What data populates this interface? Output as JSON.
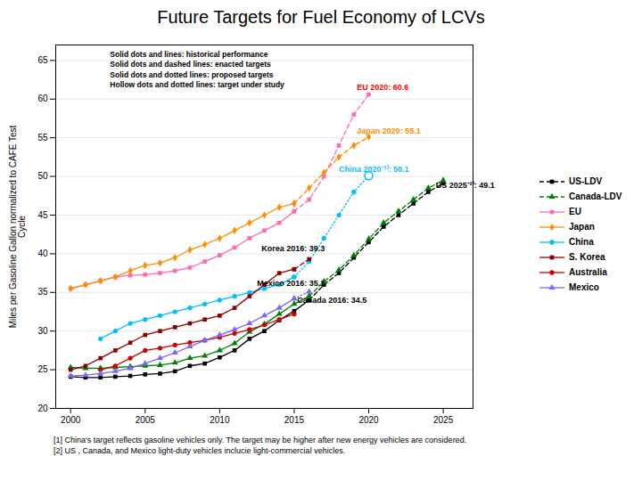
{
  "chart_data": {
    "type": "line",
    "title": "Future Targets for Fuel Economy of LCVs",
    "ylabel": "Miles per Gasoline Gallon normalized to CAFE Test\nCycle",
    "xlim": [
      1999,
      2027
    ],
    "ylim": [
      20,
      67
    ],
    "xticks": [
      2000,
      2005,
      2010,
      2015,
      2020,
      2025
    ],
    "yticks": [
      20,
      25,
      30,
      35,
      40,
      45,
      50,
      55,
      60,
      65
    ],
    "grid": "y",
    "legend": "right",
    "legend_text": [
      "Solid dots and lines: historical performance",
      "Solid dots and dashed lines: enacted targets",
      "Solid dots and dotted lines: proposed targets",
      "Hollow dots and dotted lines: target under study"
    ],
    "footnotes": [
      "[1] China's target reflects gasoline vehicles only. The target may be higher after new energy vehicles are considered.",
      "[2] US , Canada, and Mexico light-duty vehicles inclucie light-commercial vehicles."
    ],
    "annotations": [
      {
        "text": "EU 2020: 60.6",
        "x": 2019.2,
        "y": 61.2,
        "color": "#FF0000"
      },
      {
        "text": "Japan 2020: 55.1",
        "x": 2019.2,
        "y": 55.5,
        "color": "#FF8C00"
      },
      {
        "text": "China 2020⁻¹⁾: 50.1",
        "x": 2018.0,
        "y": 50.6,
        "color": "#00BFFF"
      },
      {
        "text": "US 2025⁻²⁾: 49.1",
        "x": 2024.5,
        "y": 48.5,
        "color": "#000000"
      },
      {
        "text": "Korea 2016: 39.3",
        "x": 2012.8,
        "y": 40.3,
        "color": "#000000"
      },
      {
        "text": "Mexico 2016: 35.1",
        "x": 2012.5,
        "y": 35.8,
        "color": "#000000"
      },
      {
        "text": "Canada 2016: 34.5",
        "x": 2015.2,
        "y": 33.7,
        "color": "#000000"
      }
    ],
    "series": [
      {
        "name": "US-LDV",
        "color": "#000000",
        "marker": "square",
        "line_style": "dashed",
        "segments": [
          {
            "line_style": "solid",
            "x": [
              2000,
              2001,
              2002,
              2003,
              2004,
              2005,
              2006,
              2007,
              2008,
              2009,
              2010,
              2011,
              2012,
              2013,
              2014,
              2015,
              2016
            ],
            "values": [
              24.1,
              24.0,
              24.0,
              24.1,
              24.2,
              24.4,
              24.5,
              24.8,
              25.5,
              25.8,
              26.6,
              27.5,
              29.0,
              30.0,
              31.4,
              32.6,
              34.0
            ]
          },
          {
            "line_style": "dashed",
            "x": [
              2016,
              2017,
              2018,
              2019,
              2020,
              2021,
              2022,
              2023,
              2024,
              2025
            ],
            "values": [
              34.0,
              36.0,
              37.5,
              39.5,
              41.5,
              43.5,
              45.0,
              46.5,
              48.0,
              49.1
            ]
          }
        ]
      },
      {
        "name": "Canada-LDV",
        "color": "#008000",
        "marker": "triangle",
        "line_style": "dashed",
        "segments": [
          {
            "line_style": "solid",
            "x": [
              2000,
              2001,
              2002,
              2003,
              2004,
              2005,
              2006,
              2007,
              2008,
              2009,
              2010,
              2011,
              2012,
              2013,
              2014,
              2015,
              2016
            ],
            "values": [
              25.3,
              25.2,
              25.2,
              25.3,
              25.4,
              25.5,
              25.6,
              25.9,
              26.5,
              26.8,
              27.5,
              28.4,
              29.9,
              30.9,
              32.2,
              33.5,
              34.5
            ]
          },
          {
            "line_style": "dashed",
            "x": [
              2016,
              2017,
              2018,
              2019,
              2020,
              2021,
              2022,
              2023,
              2024,
              2025
            ],
            "values": [
              34.5,
              36.4,
              37.9,
              39.8,
              41.9,
              44.0,
              45.5,
              47.0,
              48.5,
              49.5
            ]
          }
        ]
      },
      {
        "name": "EU",
        "color": "#FF69B4",
        "marker": "square",
        "line_style": "solid",
        "segments": [
          {
            "line_style": "solid",
            "x": [
              2000,
              2001,
              2002,
              2003,
              2004,
              2005,
              2006,
              2007,
              2008,
              2009,
              2010,
              2011,
              2012,
              2013,
              2014,
              2015
            ],
            "values": [
              35.5,
              36.0,
              36.5,
              37.0,
              37.2,
              37.3,
              37.5,
              37.8,
              38.2,
              39.0,
              39.8,
              40.8,
              42.0,
              43.0,
              44.0,
              45.5
            ]
          },
          {
            "line_style": "dashed",
            "x": [
              2015,
              2016,
              2017,
              2018,
              2019,
              2020
            ],
            "values": [
              45.5,
              47.0,
              50.0,
              54.0,
              58.0,
              60.6
            ]
          }
        ]
      },
      {
        "name": "Japan",
        "color": "#FF8C00",
        "marker": "diamond",
        "line_style": "solid",
        "segments": [
          {
            "line_style": "solid",
            "x": [
              2000,
              2001,
              2002,
              2003,
              2004,
              2005,
              2006,
              2007,
              2008,
              2009,
              2010,
              2011,
              2012,
              2013,
              2014,
              2015
            ],
            "values": [
              35.5,
              36.0,
              36.5,
              37.0,
              37.8,
              38.5,
              38.8,
              39.5,
              40.5,
              41.2,
              42.0,
              43.0,
              44.0,
              45.0,
              46.0,
              46.5
            ]
          },
          {
            "line_style": "dashed",
            "x": [
              2015,
              2016,
              2017,
              2018,
              2019,
              2020
            ],
            "values": [
              46.5,
              48.5,
              50.5,
              52.5,
              54.0,
              55.1
            ]
          }
        ]
      },
      {
        "name": "China",
        "color": "#00BFFF",
        "marker": "circle",
        "line_style": "solid",
        "segments": [
          {
            "line_style": "solid",
            "x": [
              2002,
              2003,
              2004,
              2005,
              2006,
              2007,
              2008,
              2009,
              2010,
              2011,
              2012,
              2013,
              2014,
              2015
            ],
            "values": [
              29.0,
              30.0,
              31.0,
              31.5,
              32.0,
              32.5,
              33.0,
              33.5,
              34.0,
              34.5,
              35.0,
              35.5,
              36.0,
              37.0
            ]
          },
          {
            "line_style": "dotted",
            "x": [
              2015,
              2016,
              2017,
              2018,
              2019,
              2020
            ],
            "values": [
              37.0,
              39.0,
              42.0,
              45.0,
              48.0,
              50.1
            ]
          }
        ],
        "open_markers": {
          "x": [
            2020
          ],
          "values": [
            50.1
          ]
        }
      },
      {
        "name": "S. Korea",
        "color": "#8B0000",
        "marker": "square",
        "line_style": "solid",
        "segments": [
          {
            "line_style": "solid",
            "x": [
              2000,
              2001,
              2002,
              2003,
              2004,
              2005,
              2006,
              2007,
              2008,
              2009,
              2010,
              2011,
              2012,
              2013,
              2014,
              2015
            ],
            "values": [
              25.0,
              25.5,
              26.5,
              27.5,
              28.5,
              29.5,
              30.0,
              30.5,
              31.0,
              31.5,
              32.0,
              33.0,
              34.5,
              36.0,
              37.5,
              38.0
            ]
          },
          {
            "line_style": "dashed",
            "x": [
              2015,
              2016
            ],
            "values": [
              38.0,
              39.3
            ]
          }
        ]
      },
      {
        "name": "Australia",
        "color": "#CC0000",
        "marker": "circle",
        "line_style": "solid",
        "segments": [
          {
            "line_style": "solid",
            "x": [
              2002,
              2003,
              2004,
              2005,
              2006,
              2007,
              2008,
              2009,
              2010,
              2011,
              2012,
              2013,
              2014,
              2015
            ],
            "values": [
              25.0,
              25.5,
              26.5,
              27.5,
              27.8,
              28.2,
              28.5,
              28.8,
              29.2,
              29.7,
              30.2,
              30.8,
              31.5,
              32.2
            ]
          }
        ]
      },
      {
        "name": "Mexico",
        "color": "#7B68EE",
        "marker": "triangle",
        "line_style": "solid",
        "segments": [
          {
            "line_style": "solid",
            "x": [
              2000,
              2001,
              2002,
              2003,
              2004,
              2005,
              2006,
              2007,
              2008,
              2009,
              2010,
              2011,
              2012,
              2013,
              2014,
              2015
            ],
            "values": [
              24.2,
              24.3,
              24.5,
              24.8,
              25.2,
              25.8,
              26.5,
              27.2,
              28.0,
              28.8,
              29.5,
              30.2,
              31.0,
              32.0,
              33.0,
              34.2
            ]
          },
          {
            "line_style": "dotted",
            "x": [
              2015,
              2016
            ],
            "values": [
              34.2,
              35.1
            ]
          }
        ]
      }
    ]
  }
}
